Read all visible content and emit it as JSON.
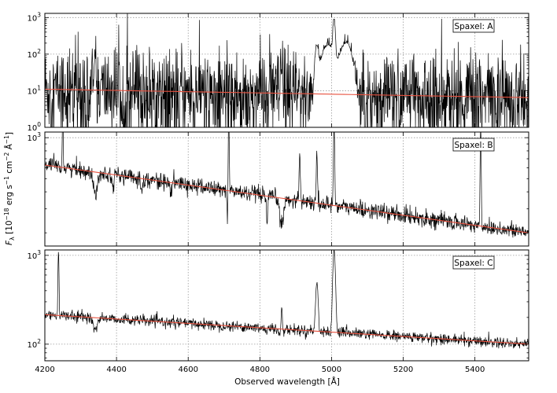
{
  "chart_data": {
    "type": "line",
    "xlabel": "Observed wavelength [Å]",
    "ylabel": "F_λ [10⁻¹⁸ erg s⁻¹ cm⁻² Å⁻¹]",
    "ylabel_parts": {
      "symbol": "F",
      "sub": "λ",
      "unit": " [10",
      "exp1": "−18",
      "erg": " erg s",
      "exp2": "−1",
      "cm": " cm",
      "exp3": "−2",
      "ang": " Å",
      "exp4": "−1",
      "close": "]"
    },
    "xlim": [
      4200,
      5550
    ],
    "xticks": [
      4200,
      4400,
      4600,
      4800,
      5000,
      5200,
      5400
    ],
    "xtick_labels": [
      "4200",
      "4400",
      "4600",
      "4800",
      "5000",
      "5200",
      "5400"
    ],
    "grid": true,
    "panels": [
      {
        "label": "Spaxel: A",
        "yscale": "log",
        "ylim": [
          1,
          1300
        ],
        "yticks": [
          1,
          10,
          100,
          1000
        ],
        "ytick_labels": [
          {
            "base": "10",
            "exp": "0"
          },
          {
            "base": "10",
            "exp": "1"
          },
          {
            "base": "10",
            "exp": "2"
          },
          {
            "base": "10",
            "exp": "3"
          }
        ],
        "fit_continuum": {
          "start": 11,
          "end": 6.5
        },
        "noise": 0.6,
        "features": [
          {
            "x": 4340,
            "y": 80,
            "w": 2
          },
          {
            "x": 4861,
            "y": 30,
            "w": 2
          },
          {
            "x": 4959,
            "y": 160,
            "w": 4
          },
          {
            "x": 4975,
            "y": 40,
            "w": 8
          },
          {
            "x": 5007,
            "y": 800,
            "w": 2.5
          },
          {
            "x": 4992,
            "y": 170,
            "w": 12
          },
          {
            "x": 5035,
            "y": 120,
            "w": 14
          },
          {
            "x": 5045,
            "y": 100,
            "w": 10
          }
        ]
      },
      {
        "label": "Spaxel: B",
        "yscale": "log",
        "ylim": [
          160,
          1100
        ],
        "yticks": [
          1000
        ],
        "ytick_labels": [
          {
            "base": "10",
            "exp": "3"
          }
        ],
        "fit_continuum": {
          "start": 630,
          "end": 200
        },
        "noise": 0.03,
        "features": [
          {
            "x": 4250,
            "y": 1050,
            "w": 1.2
          },
          {
            "x": 4713,
            "y": 1050,
            "w": 1.2
          },
          {
            "x": 4911,
            "y": 430,
            "w": 1.5
          },
          {
            "x": 4959,
            "y": 440,
            "w": 1.5
          },
          {
            "x": 5007,
            "y": 950,
            "w": 1.5
          },
          {
            "x": 5416,
            "y": 1000,
            "w": 1.2
          }
        ],
        "absorptions": [
          {
            "x": 4340,
            "depth": 0.7,
            "w": 6
          },
          {
            "x": 4861,
            "depth": 0.65,
            "w": 6
          },
          {
            "x": 4710,
            "depth": 0.55,
            "w": 1.5
          },
          {
            "x": 4820,
            "depth": 0.6,
            "w": 2
          },
          {
            "x": 4390,
            "depth": 0.85,
            "w": 3
          },
          {
            "x": 4470,
            "depth": 0.85,
            "w": 3
          },
          {
            "x": 4550,
            "depth": 0.85,
            "w": 3
          },
          {
            "x": 4250,
            "depth": 0.85,
            "w": 2
          }
        ]
      },
      {
        "label": "Spaxel: C",
        "yscale": "log",
        "ylim": [
          65,
          1150
        ],
        "yticks": [
          100,
          1000
        ],
        "ytick_labels": [
          {
            "base": "10",
            "exp": "2"
          },
          {
            "base": "10",
            "exp": "3"
          }
        ],
        "fit_continuum": {
          "start": 215,
          "end": 100
        },
        "noise": 0.03,
        "features": [
          {
            "x": 4238,
            "y": 900,
            "w": 1.2
          },
          {
            "x": 4861,
            "y": 170,
            "w": 2
          },
          {
            "x": 4959,
            "y": 350,
            "w": 3
          },
          {
            "x": 5007,
            "y": 1000,
            "w": 3
          }
        ],
        "absorptions": [
          {
            "x": 4340,
            "depth": 0.7,
            "w": 5
          },
          {
            "x": 4861,
            "depth": 0.6,
            "w": 4
          },
          {
            "x": 4820,
            "depth": 0.85,
            "w": 2
          }
        ]
      }
    ]
  }
}
